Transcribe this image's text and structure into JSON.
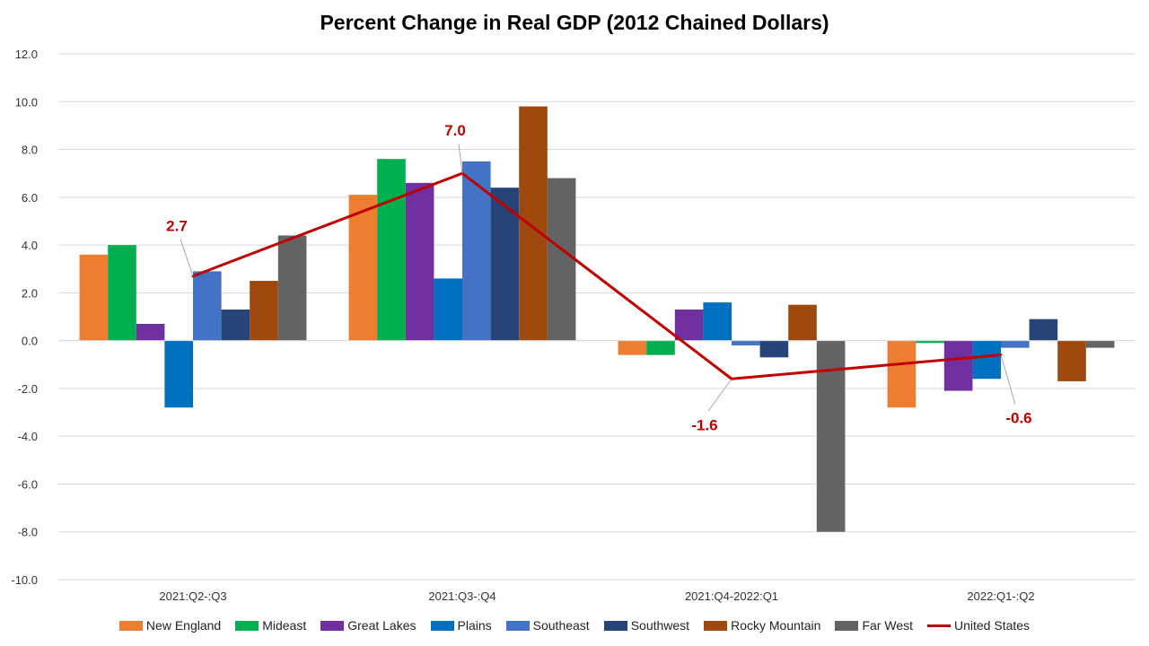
{
  "chart_data": {
    "type": "bar",
    "title": "Percent Change in Real GDP (2012 Chained Dollars)",
    "xlabel": "",
    "ylabel": "",
    "ylim": [
      -10,
      12
    ],
    "ytick_step": 2,
    "ytick_labels": [
      "12.0",
      "10.0",
      "8.0",
      "6.0",
      "4.0",
      "2.0",
      "0.0",
      "-2.0",
      "-4.0",
      "-6.0",
      "-8.0",
      "-10.0"
    ],
    "grid": true,
    "legend_position": "bottom",
    "categories": [
      "2021:Q2-:Q3",
      "2021:Q3-:Q4",
      "2021:Q4-2022:Q1",
      "2022:Q1-:Q2"
    ],
    "series": [
      {
        "name": "New England",
        "color": "#ED7D31",
        "values": [
          3.6,
          6.1,
          -0.6,
          -2.8
        ]
      },
      {
        "name": "Mideast",
        "color": "#00B050",
        "values": [
          4.0,
          7.6,
          -0.6,
          -0.1
        ]
      },
      {
        "name": "Great Lakes",
        "color": "#7030A0",
        "values": [
          0.7,
          6.6,
          1.3,
          -2.1
        ]
      },
      {
        "name": "Plains",
        "color": "#0070C0",
        "values": [
          -2.8,
          2.6,
          1.6,
          -1.6
        ]
      },
      {
        "name": "Southeast",
        "color": "#4472C4",
        "values": [
          2.9,
          7.5,
          -0.2,
          -0.3
        ]
      },
      {
        "name": "Southwest",
        "color": "#264478",
        "values": [
          1.3,
          6.4,
          -0.7,
          0.9
        ]
      },
      {
        "name": "Rocky Mountain",
        "color": "#9E480E",
        "values": [
          2.5,
          9.8,
          1.5,
          -1.7
        ]
      },
      {
        "name": "Far West",
        "color": "#636363",
        "values": [
          4.4,
          6.8,
          -8.0,
          -0.3
        ]
      }
    ],
    "line_series": {
      "name": "United States",
      "color": "#C00000",
      "values": [
        2.7,
        7.0,
        -1.6,
        -0.6
      ],
      "data_labels": [
        "2.7",
        "7.0",
        "-1.6",
        "-0.6"
      ]
    }
  }
}
